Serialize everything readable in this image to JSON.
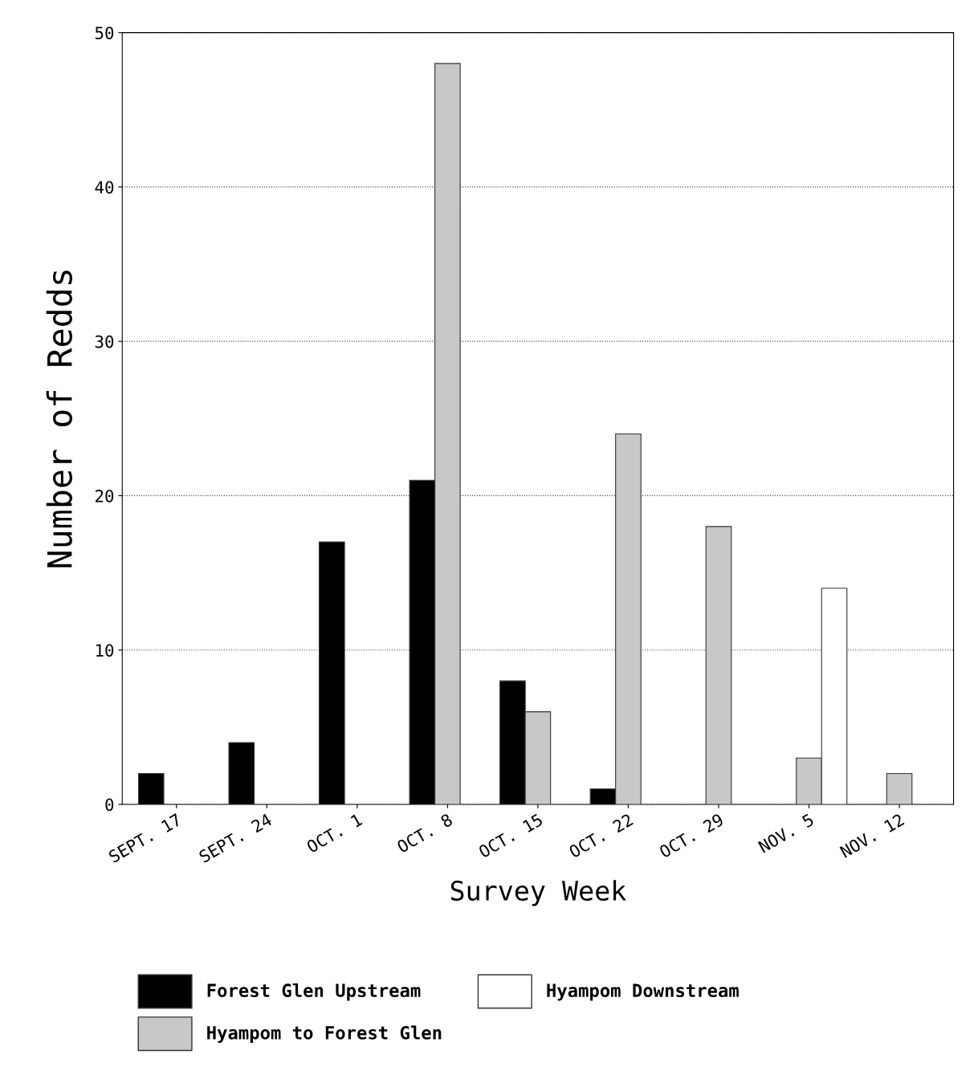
{
  "chart_data": {
    "type": "bar",
    "xlabel": "Survey Week",
    "ylabel": "Number of Redds",
    "categories": [
      "SEPT. 17",
      "SEPT. 24",
      "OCT. 1",
      "OCT. 8",
      "OCT. 15",
      "OCT. 22",
      "OCT. 29",
      "NOV. 5",
      "NOV. 12"
    ],
    "series": [
      {
        "name": "Forest Glen Upstream",
        "color": "#000000",
        "values": [
          2,
          4,
          17,
          21,
          8,
          1,
          null,
          null,
          null
        ]
      },
      {
        "name": "Hyampom to Forest Glen",
        "color": "#c8c8c8",
        "values": [
          null,
          null,
          null,
          48,
          6,
          24,
          18,
          3,
          2
        ]
      },
      {
        "name": "Hyampom Downstream",
        "color": "#ffffff",
        "values": [
          null,
          null,
          null,
          null,
          null,
          null,
          null,
          14,
          null
        ]
      }
    ],
    "ylim": [
      0,
      50
    ],
    "yticks": [
      0,
      10,
      20,
      30,
      40,
      50
    ],
    "grid": "y",
    "legend": "bottom"
  }
}
